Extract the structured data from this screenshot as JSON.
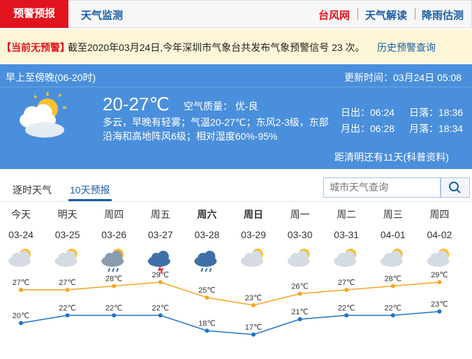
{
  "nav": {
    "tabs": [
      "预警预报",
      "天气监测"
    ],
    "links": [
      "台风网",
      "天气解读",
      "降雨估测"
    ]
  },
  "alert": {
    "status": "【当前无预警】",
    "message": "截至2020年03月24日,今年深圳市气象台共发布气象预警信号 23 次。",
    "link": "历史预警查询"
  },
  "today": {
    "period": "早上至傍晚(06-20时)",
    "updated": "更新时间：03月24日 05:08",
    "temp": "20-27℃",
    "air_quality": "空气质量： 优-良",
    "description": "多云，早晚有轻雾；气温20-27℃；东风2-3级，东部沿海和高地阵风6级；相对湿度60%-95%",
    "sun_moon": [
      [
        "日出：06:24",
        "日落：18:36"
      ],
      [
        "月出：06:28",
        "月落：18:34"
      ]
    ],
    "countdown": "距清明还有11天(科普资料)"
  },
  "forecast": {
    "tabs": [
      "逐时天气",
      "10天预报"
    ],
    "search_placeholder": "城市天气查询",
    "days": [
      "今天",
      "明天",
      "周四",
      "周五",
      "周六",
      "周日",
      "周一",
      "周二",
      "周三",
      "周四"
    ],
    "dates": [
      "03-24",
      "03-25",
      "03-26",
      "03-27",
      "03-28",
      "03-29",
      "03-30",
      "03-31",
      "04-01",
      "04-02"
    ],
    "highs": [
      27,
      27,
      28,
      29,
      25,
      23,
      26,
      27,
      28,
      29
    ],
    "high_labels": [
      "27℃",
      "27℃",
      "28℃",
      "29℃",
      "25℃",
      "23℃",
      "26℃",
      "27℃",
      "28℃",
      "29℃"
    ],
    "lows": [
      20,
      22,
      22,
      22,
      18,
      17,
      21,
      22,
      22,
      23
    ],
    "low_labels": [
      "20℃",
      "22℃",
      "22℃",
      "22℃",
      "18℃",
      "17℃",
      "21℃",
      "22℃",
      "22℃",
      "23℃"
    ]
  }
}
